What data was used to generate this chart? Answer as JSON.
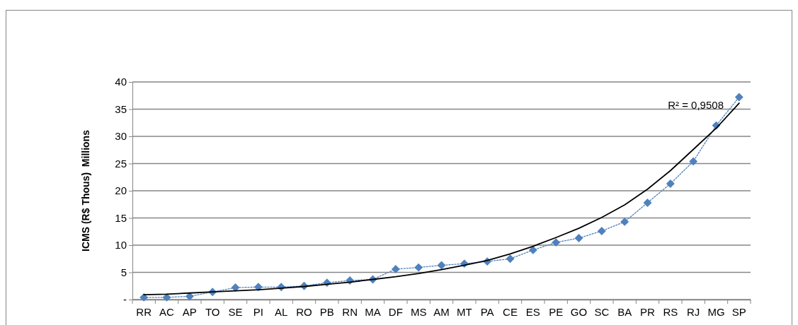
{
  "chart_data": {
    "type": "line",
    "ylabel": "ICMS (R$ Thous)  Millions",
    "categories": [
      "RR",
      "AC",
      "AP",
      "TO",
      "SE",
      "PI",
      "AL",
      "RO",
      "PB",
      "RN",
      "MA",
      "DF",
      "MS",
      "AM",
      "MT",
      "PA",
      "CE",
      "ES",
      "PE",
      "GO",
      "SC",
      "BA",
      "PR",
      "RS",
      "RJ",
      "MG",
      "SP"
    ],
    "series": [
      {
        "color": "#4f81bd",
        "marker": "diamond",
        "line_style": "dotted",
        "values": [
          0.4,
          0.4,
          0.6,
          1.4,
          2.2,
          2.3,
          2.3,
          2.5,
          3.1,
          3.5,
          3.7,
          5.6,
          5.9,
          6.3,
          6.6,
          7.0,
          7.5,
          9.1,
          10.5,
          11.3,
          12.6,
          14.3,
          17.8,
          21.3,
          25.4,
          32.0,
          37.2
        ]
      },
      {
        "color": "#000000",
        "marker": "none",
        "line_style": "solid",
        "values": [
          0.9,
          1.0,
          1.2,
          1.4,
          1.6,
          1.8,
          2.1,
          2.4,
          2.8,
          3.2,
          3.7,
          4.2,
          4.8,
          5.5,
          6.3,
          7.2,
          8.4,
          9.8,
          11.4,
          13.1,
          15.1,
          17.4,
          20.3,
          23.7,
          27.6,
          31.5,
          36.1
        ]
      }
    ],
    "ylim": [
      0,
      40
    ],
    "yticks": [
      {
        "value": 0,
        "label": "-"
      },
      5,
      10,
      15,
      20,
      25,
      30,
      35,
      40
    ],
    "grid": "y",
    "annotations": [
      "R² = 0,9508"
    ]
  }
}
